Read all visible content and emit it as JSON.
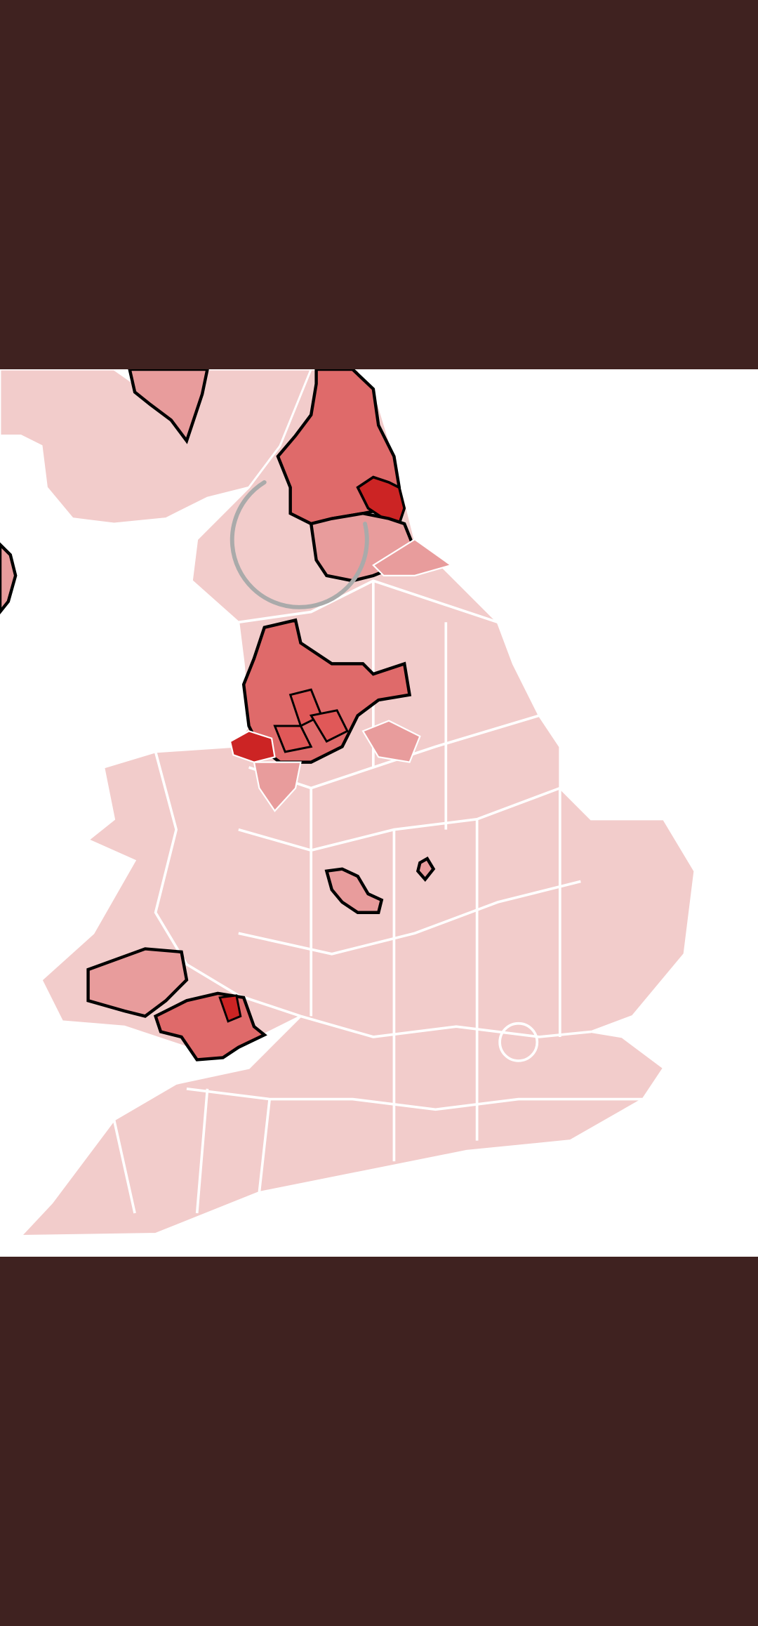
{
  "viewer": {
    "background_color": "#3f2220",
    "map_background_color": "#ffffff"
  },
  "map": {
    "land_color": "#f2cccb",
    "boundary_color": "#ffffff",
    "highlight_outline_color": "#000000",
    "shade_scale": [
      "#f2cccb",
      "#e89c9c",
      "#df6a6a",
      "#cc2424"
    ]
  },
  "loading_indicator": {
    "icon": "spinner-ring-icon",
    "color": "#aaaaaa"
  }
}
